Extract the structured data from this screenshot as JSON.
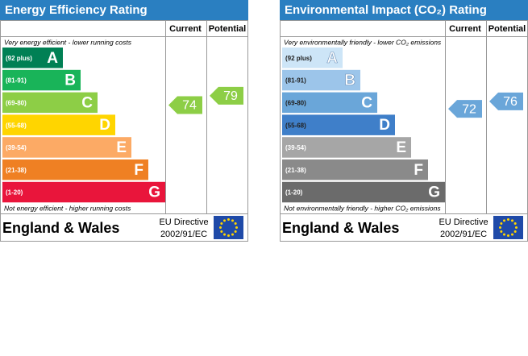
{
  "panels": [
    {
      "title": "Energy Efficiency Rating",
      "col_current": "Current",
      "col_potential": "Potential",
      "top_note": "Very energy efficient - lower running costs",
      "bottom_note": "Not energy efficient - higher running costs",
      "bands": [
        {
          "range": "(92 plus)",
          "letter": "A",
          "color": "#008054"
        },
        {
          "range": "(81-91)",
          "letter": "B",
          "color": "#19b459"
        },
        {
          "range": "(69-80)",
          "letter": "C",
          "color": "#8dce46"
        },
        {
          "range": "(55-68)",
          "letter": "D",
          "color": "#ffd500"
        },
        {
          "range": "(39-54)",
          "letter": "E",
          "color": "#fcaa65"
        },
        {
          "range": "(21-38)",
          "letter": "F",
          "color": "#ef8023"
        },
        {
          "range": "(1-20)",
          "letter": "G",
          "color": "#e9153b"
        }
      ],
      "current": 74,
      "potential": 79,
      "arrow_color": "#8dce46",
      "region": "England & Wales",
      "directive": "EU Directive",
      "directive_code": "2002/91/EC"
    },
    {
      "title": "Environmental Impact (CO₂) Rating",
      "col_current": "Current",
      "col_potential": "Potential",
      "top_note": "Very environmentally friendly - lower CO₂ emissions",
      "bottom_note": "Not environmentally friendly - higher CO₂ emissions",
      "bands": [
        {
          "range": "(92 plus)",
          "letter": "A",
          "color": "#cde5f7"
        },
        {
          "range": "(81-91)",
          "letter": "B",
          "color": "#9cc5ea"
        },
        {
          "range": "(69-80)",
          "letter": "C",
          "color": "#6aa6d9"
        },
        {
          "range": "(55-68)",
          "letter": "D",
          "color": "#3f7fc9"
        },
        {
          "range": "(39-54)",
          "letter": "E",
          "color": "#a6a6a6"
        },
        {
          "range": "(21-38)",
          "letter": "F",
          "color": "#8a8a8a"
        },
        {
          "range": "(1-20)",
          "letter": "G",
          "color": "#6b6b6b"
        }
      ],
      "current": 72,
      "potential": 76,
      "arrow_color": "#6aa6d9",
      "region": "England & Wales",
      "directive": "EU Directive",
      "directive_code": "2002/91/EC"
    }
  ]
}
